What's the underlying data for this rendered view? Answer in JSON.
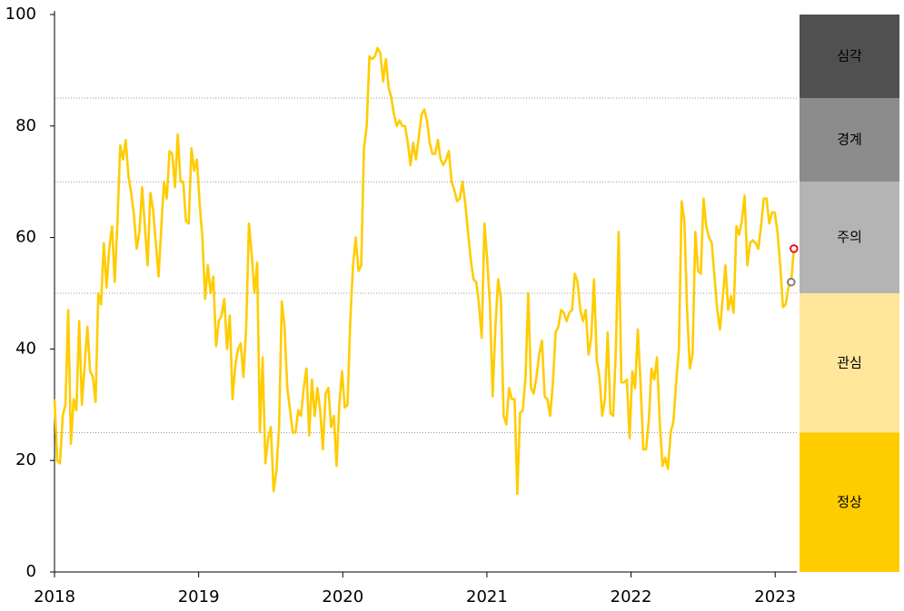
{
  "chart_data": {
    "type": "line",
    "x": [
      2018,
      2018.019,
      2018.038,
      2018.057,
      2018.076,
      2018.095,
      2018.114,
      2018.133,
      2018.152,
      2018.171,
      2018.19,
      2018.209,
      2018.228,
      2018.247,
      2018.266,
      2018.285,
      2018.304,
      2018.323,
      2018.342,
      2018.361,
      2018.38,
      2018.399,
      2018.418,
      2018.437,
      2018.456,
      2018.475,
      2018.494,
      2018.513,
      2018.532,
      2018.551,
      2018.57,
      2018.589,
      2018.608,
      2018.627,
      2018.646,
      2018.665,
      2018.684,
      2018.703,
      2018.722,
      2018.741,
      2018.76,
      2018.779,
      2018.798,
      2018.817,
      2018.836,
      2018.855,
      2018.874,
      2018.893,
      2018.912,
      2018.931,
      2018.95,
      2018.969,
      2018.988,
      2019.007,
      2019.026,
      2019.045,
      2019.064,
      2019.083,
      2019.102,
      2019.121,
      2019.14,
      2019.159,
      2019.178,
      2019.197,
      2019.216,
      2019.235,
      2019.254,
      2019.273,
      2019.292,
      2019.311,
      2019.33,
      2019.349,
      2019.368,
      2019.387,
      2019.406,
      2019.425,
      2019.444,
      2019.463,
      2019.482,
      2019.501,
      2019.52,
      2019.539,
      2019.558,
      2019.577,
      2019.596,
      2019.615,
      2019.634,
      2019.653,
      2019.672,
      2019.691,
      2019.71,
      2019.729,
      2019.748,
      2019.767,
      2019.786,
      2019.805,
      2019.824,
      2019.843,
      2019.862,
      2019.881,
      2019.9,
      2019.919,
      2019.938,
      2019.957,
      2019.976,
      2019.995,
      2020.014,
      2020.033,
      2020.052,
      2020.071,
      2020.09,
      2020.109,
      2020.128,
      2020.147,
      2020.166,
      2020.185,
      2020.204,
      2020.223,
      2020.242,
      2020.261,
      2020.28,
      2020.299,
      2020.318,
      2020.337,
      2020.356,
      2020.375,
      2020.394,
      2020.413,
      2020.432,
      2020.451,
      2020.47,
      2020.489,
      2020.508,
      2020.527,
      2020.546,
      2020.565,
      2020.584,
      2020.603,
      2020.622,
      2020.641,
      2020.66,
      2020.679,
      2020.698,
      2020.717,
      2020.736,
      2020.755,
      2020.774,
      2020.793,
      2020.812,
      2020.831,
      2020.85,
      2020.869,
      2020.888,
      2020.907,
      2020.926,
      2020.945,
      2020.964,
      2020.983,
      2021.002,
      2021.021,
      2021.04,
      2021.059,
      2021.078,
      2021.097,
      2021.116,
      2021.135,
      2021.154,
      2021.173,
      2021.192,
      2021.211,
      2021.23,
      2021.249,
      2021.268,
      2021.287,
      2021.306,
      2021.325,
      2021.344,
      2021.363,
      2021.382,
      2021.401,
      2021.42,
      2021.439,
      2021.458,
      2021.477,
      2021.496,
      2021.515,
      2021.534,
      2021.553,
      2021.572,
      2021.591,
      2021.61,
      2021.629,
      2021.648,
      2021.667,
      2021.686,
      2021.705,
      2021.724,
      2021.743,
      2021.762,
      2021.781,
      2021.8,
      2021.819,
      2021.838,
      2021.857,
      2021.876,
      2021.895,
      2021.914,
      2021.933,
      2021.952,
      2021.971,
      2021.99,
      2022.009,
      2022.028,
      2022.047,
      2022.066,
      2022.085,
      2022.104,
      2022.123,
      2022.142,
      2022.161,
      2022.18,
      2022.199,
      2022.218,
      2022.237,
      2022.256,
      2022.275,
      2022.294,
      2022.313,
      2022.332,
      2022.351,
      2022.37,
      2022.389,
      2022.408,
      2022.427,
      2022.446,
      2022.465,
      2022.484,
      2022.503,
      2022.522,
      2022.541,
      2022.56,
      2022.579,
      2022.598,
      2022.617,
      2022.636,
      2022.655,
      2022.674,
      2022.693,
      2022.712,
      2022.731,
      2022.75,
      2022.769,
      2022.788,
      2022.807,
      2022.826,
      2022.845,
      2022.864,
      2022.883,
      2022.902,
      2022.921,
      2022.94,
      2022.959,
      2022.978,
      2022.997,
      2023.016,
      2023.035,
      2023.054,
      2023.073,
      2023.092,
      2023.111,
      2023.13
    ],
    "values": [
      31,
      20,
      19.5,
      28,
      30,
      47,
      23,
      31,
      29,
      45,
      30,
      37,
      44,
      36,
      35,
      30.5,
      50,
      48,
      59,
      51,
      58,
      62,
      52,
      63,
      76.5,
      74,
      77.5,
      71,
      68,
      64,
      58,
      61,
      69,
      62,
      55,
      68,
      65,
      59,
      53,
      62,
      70,
      67,
      75.5,
      75,
      69,
      78.5,
      70,
      70,
      63,
      62.5,
      76,
      72,
      74,
      66,
      60,
      49,
      55,
      50,
      53,
      40.5,
      45,
      46,
      49,
      40,
      46,
      31,
      37,
      40,
      41,
      35,
      44,
      62.5,
      57,
      50,
      55.5,
      25,
      38.5,
      19.5,
      24,
      26,
      14.5,
      18,
      26,
      48.5,
      44,
      33,
      29,
      25,
      25,
      29,
      28,
      33,
      36.5,
      24.5,
      34.5,
      28,
      33,
      29,
      22,
      32,
      33,
      26,
      28,
      19,
      30,
      36,
      29.5,
      30,
      45,
      55,
      60,
      54,
      55,
      76,
      80,
      92.5,
      92,
      92.5,
      94,
      93,
      88,
      92,
      87,
      85,
      82,
      80,
      81,
      80,
      80,
      77,
      73,
      77,
      74,
      78,
      82,
      83,
      81,
      77,
      75,
      75,
      77.5,
      74,
      73,
      74,
      75.5,
      70,
      68.5,
      66.5,
      67,
      70,
      66,
      61,
      56,
      52.5,
      52,
      48,
      42,
      62.5,
      56,
      48,
      31.5,
      44,
      52.5,
      49,
      28,
      26.5,
      33,
      31,
      31,
      14,
      28.5,
      29,
      35,
      50,
      33,
      32,
      35,
      39,
      41.5,
      31.5,
      31,
      28,
      34,
      43,
      44,
      47,
      46.5,
      45,
      46.5,
      47,
      53.5,
      52,
      47,
      45,
      47,
      39,
      42,
      52.5,
      38,
      35,
      28,
      31,
      43,
      28.5,
      28,
      40,
      61,
      34,
      34,
      34.5,
      24,
      36,
      33,
      43.5,
      34,
      22,
      22,
      27,
      36.5,
      34.5,
      38.5,
      27,
      19,
      20.5,
      18.5,
      25,
      27,
      34,
      40,
      66.5,
      63,
      47,
      36.5,
      39,
      61,
      54,
      53.5,
      67,
      62,
      60,
      59,
      53,
      47,
      43.5,
      49,
      55,
      47,
      49.5,
      46.5,
      62,
      60.5,
      63,
      67.5,
      55,
      59,
      59.5,
      59,
      58,
      62,
      67,
      67,
      62.5,
      64.5,
      64.5,
      61,
      55,
      47.5,
      48,
      51,
      52,
      58
    ],
    "color": "#ffcc00",
    "markers": [
      {
        "x": 2023.111,
        "value": 52,
        "color": "#8a7a6a"
      },
      {
        "x": 2023.13,
        "value": 58,
        "color": "#e8141e"
      }
    ],
    "xlim": [
      2018,
      2023.15
    ],
    "xticks": [
      2018,
      2019,
      2020,
      2021,
      2022,
      2023
    ],
    "ylim": [
      0,
      100
    ],
    "yticks": [
      0,
      20,
      40,
      60,
      80,
      100
    ],
    "bands": [
      {
        "label": "정상",
        "from": 0,
        "to": 25,
        "color": "#ffcc00",
        "text_color": "#222222"
      },
      {
        "label": "관심",
        "from": 25,
        "to": 50,
        "color": "#ffe699",
        "text_color": "#222222"
      },
      {
        "label": "주의",
        "from": 50,
        "to": 70,
        "color": "#b4b4b4",
        "text_color": "#222222"
      },
      {
        "label": "경계",
        "from": 70,
        "to": 85,
        "color": "#8c8c8c",
        "text_color": "#f0f0f0"
      },
      {
        "label": "심각",
        "from": 85,
        "to": 100,
        "color": "#505050",
        "text_color": "#f0f0f0"
      }
    ]
  }
}
